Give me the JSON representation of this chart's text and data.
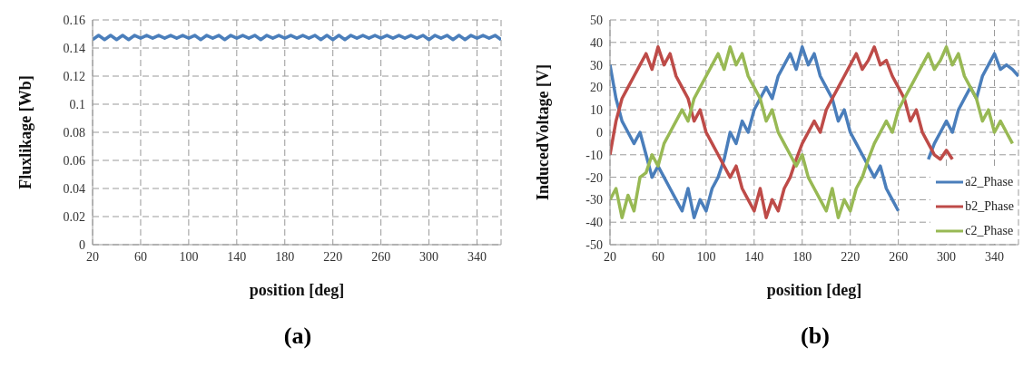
{
  "chart_data": [
    {
      "type": "line",
      "xlabel": "position [deg]",
      "ylabel": "Fluxlikage [Wb]",
      "annotations": [
        "(a)"
      ],
      "x": [
        20,
        25,
        30,
        35,
        40,
        45,
        50,
        55,
        60,
        65,
        70,
        75,
        80,
        85,
        90,
        95,
        100,
        105,
        110,
        115,
        120,
        125,
        130,
        135,
        140,
        145,
        150,
        155,
        160,
        165,
        170,
        175,
        180,
        185,
        190,
        195,
        200,
        205,
        210,
        215,
        220,
        225,
        230,
        235,
        240,
        245,
        250,
        255,
        260,
        265,
        270,
        275,
        280,
        285,
        290,
        295,
        300,
        305,
        310,
        315,
        320,
        325,
        330,
        335,
        340,
        345,
        350,
        355,
        360
      ],
      "series": [
        {
          "color": "#4a7ebb",
          "values": [
            0.146,
            0.149,
            0.146,
            0.149,
            0.146,
            0.149,
            0.146,
            0.149,
            0.147,
            0.149,
            0.147,
            0.149,
            0.147,
            0.149,
            0.147,
            0.149,
            0.147,
            0.149,
            0.146,
            0.149,
            0.147,
            0.149,
            0.146,
            0.149,
            0.147,
            0.149,
            0.147,
            0.149,
            0.146,
            0.149,
            0.147,
            0.149,
            0.147,
            0.149,
            0.147,
            0.149,
            0.147,
            0.149,
            0.146,
            0.149,
            0.146,
            0.149,
            0.146,
            0.149,
            0.147,
            0.149,
            0.147,
            0.149,
            0.147,
            0.149,
            0.147,
            0.149,
            0.147,
            0.149,
            0.147,
            0.149,
            0.146,
            0.149,
            0.147,
            0.149,
            0.146,
            0.149,
            0.146,
            0.149,
            0.147,
            0.149,
            0.147,
            0.149,
            0.146
          ]
        }
      ],
      "xlim": [
        20,
        360
      ],
      "xticks": [
        20,
        60,
        100,
        140,
        180,
        220,
        260,
        300,
        340
      ],
      "ylim": [
        0,
        0.16
      ],
      "yticks": [
        0,
        0.02,
        0.04,
        0.06,
        0.08,
        0.1,
        0.12,
        0.14,
        0.16
      ],
      "grid": true,
      "marker": "none",
      "line_style": "solid"
    },
    {
      "type": "line",
      "xlabel": "position [deg]",
      "ylabel": "InducedVoltage [V]",
      "annotations": [
        "(b)"
      ],
      "x": [
        20,
        25,
        30,
        35,
        40,
        45,
        50,
        55,
        60,
        65,
        70,
        75,
        80,
        85,
        90,
        95,
        100,
        105,
        110,
        115,
        120,
        125,
        130,
        135,
        140,
        145,
        150,
        155,
        160,
        165,
        170,
        175,
        180,
        185,
        190,
        195,
        200,
        205,
        210,
        215,
        220,
        225,
        230,
        235,
        240,
        245,
        250,
        255,
        260,
        265,
        270,
        275,
        280,
        285,
        290,
        295,
        300,
        305,
        310,
        315,
        320,
        325,
        330,
        335,
        340,
        345,
        350,
        355,
        360
      ],
      "series": [
        {
          "name": "a2_Phase",
          "color": "#4a7ebb",
          "values": [
            30,
            15,
            5,
            0,
            -5,
            0,
            -10,
            -20,
            -15,
            -20,
            -25,
            -30,
            -35,
            -25,
            -38,
            -30,
            -35,
            -25,
            -20,
            -12,
            0,
            -5,
            5,
            0,
            10,
            15,
            20,
            15,
            25,
            30,
            35,
            28,
            38,
            30,
            35,
            25,
            20,
            15,
            5,
            10,
            0,
            -5,
            -10,
            -15,
            -20,
            -15,
            -25,
            -30,
            -35,
            null,
            null,
            null,
            null,
            -12,
            -5,
            0,
            5,
            0,
            10,
            15,
            20,
            15,
            25,
            30,
            35,
            28,
            30,
            28,
            25
          ]
        },
        {
          "name": "b2_Phase",
          "color": "#be4b48",
          "values": [
            -10,
            5,
            15,
            20,
            25,
            30,
            35,
            28,
            38,
            30,
            35,
            25,
            20,
            15,
            5,
            10,
            0,
            -5,
            -10,
            -15,
            -20,
            -15,
            -25,
            -30,
            -35,
            -25,
            -38,
            -30,
            -35,
            -25,
            -20,
            -12,
            -5,
            0,
            5,
            0,
            10,
            15,
            20,
            25,
            30,
            35,
            28,
            32,
            38,
            30,
            32,
            25,
            20,
            15,
            5,
            10,
            0,
            -5,
            -10,
            -12,
            -8,
            -12,
            null,
            null,
            null,
            null,
            null,
            null,
            null,
            null,
            null,
            null,
            null
          ]
        },
        {
          "name": "c2_Phase",
          "color": "#98b954",
          "values": [
            -30,
            -25,
            -38,
            -28,
            -35,
            -20,
            -18,
            -10,
            -15,
            -5,
            0,
            5,
            10,
            5,
            15,
            20,
            25,
            30,
            35,
            28,
            38,
            30,
            35,
            25,
            20,
            15,
            5,
            10,
            0,
            -5,
            -10,
            -15,
            -10,
            -20,
            -25,
            -30,
            -35,
            -25,
            -38,
            -30,
            -35,
            -25,
            -20,
            -12,
            -5,
            0,
            5,
            0,
            10,
            15,
            20,
            25,
            30,
            35,
            28,
            32,
            38,
            30,
            35,
            25,
            20,
            15,
            5,
            10,
            0,
            5,
            0,
            -5,
            null
          ]
        }
      ],
      "xlim": [
        20,
        360
      ],
      "xticks": [
        20,
        60,
        100,
        140,
        180,
        220,
        260,
        300,
        340
      ],
      "ylim": [
        -50,
        50
      ],
      "yticks": [
        -50,
        -40,
        -30,
        -20,
        -10,
        0,
        10,
        20,
        30,
        40,
        50
      ],
      "grid": true,
      "legend": "bottom right",
      "marker": "none",
      "line_style": "solid"
    }
  ]
}
